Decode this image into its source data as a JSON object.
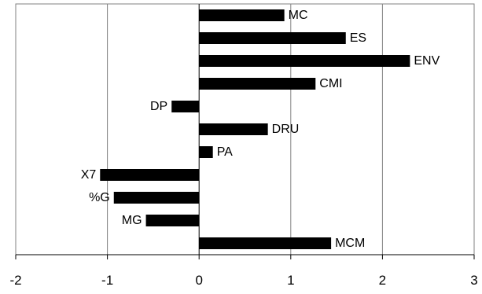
{
  "chart_data": {
    "type": "bar",
    "orientation": "horizontal",
    "categories": [
      "MC",
      "ES",
      "ENV",
      "CMI",
      "DP",
      "DRU",
      "PA",
      "X7",
      "%G",
      "MG",
      "MCM"
    ],
    "values": [
      0.93,
      1.6,
      2.3,
      1.27,
      -0.3,
      0.75,
      0.15,
      -1.08,
      -0.93,
      -0.58,
      1.44
    ],
    "xlim": [
      -2,
      3
    ],
    "xticks": [
      -2,
      -1,
      0,
      1,
      2,
      3
    ],
    "xtick_labels": [
      "-2",
      "-1",
      "0",
      "1",
      "2",
      "3"
    ],
    "grid": "vertical gridlines",
    "bar_color": "#000000",
    "grid_color": "#808080",
    "title": "",
    "xlabel": "",
    "ylabel": ""
  }
}
